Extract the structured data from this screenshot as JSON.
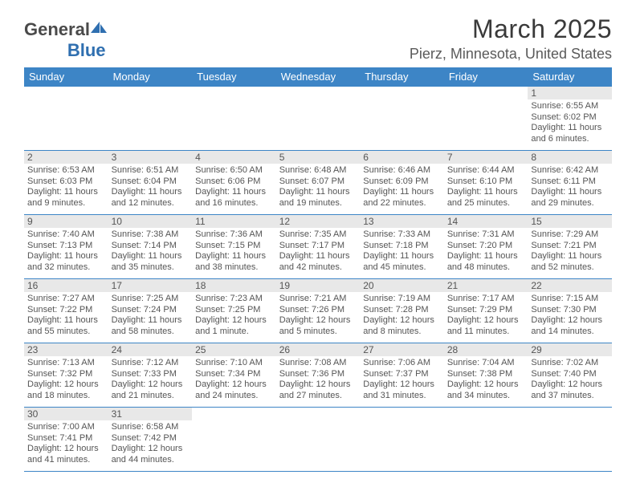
{
  "logo": {
    "prefix": "General",
    "suffix": "Blue"
  },
  "title": {
    "month": "March 2025",
    "location": "Pierz, Minnesota, United States"
  },
  "colors": {
    "header_bg": "#3d85c6",
    "header_fg": "#ffffff",
    "rule": "#3d85c6",
    "daynum_bg": "#e8e8e8",
    "text": "#555555",
    "logo_blue": "#2f6fb0"
  },
  "weekdays": [
    "Sunday",
    "Monday",
    "Tuesday",
    "Wednesday",
    "Thursday",
    "Friday",
    "Saturday"
  ],
  "weeks": [
    [
      null,
      null,
      null,
      null,
      null,
      null,
      {
        "n": "1",
        "sunrise": "6:55 AM",
        "sunset": "6:02 PM",
        "daylight": "11 hours and 6 minutes."
      }
    ],
    [
      {
        "n": "2",
        "sunrise": "6:53 AM",
        "sunset": "6:03 PM",
        "daylight": "11 hours and 9 minutes."
      },
      {
        "n": "3",
        "sunrise": "6:51 AM",
        "sunset": "6:04 PM",
        "daylight": "11 hours and 12 minutes."
      },
      {
        "n": "4",
        "sunrise": "6:50 AM",
        "sunset": "6:06 PM",
        "daylight": "11 hours and 16 minutes."
      },
      {
        "n": "5",
        "sunrise": "6:48 AM",
        "sunset": "6:07 PM",
        "daylight": "11 hours and 19 minutes."
      },
      {
        "n": "6",
        "sunrise": "6:46 AM",
        "sunset": "6:09 PM",
        "daylight": "11 hours and 22 minutes."
      },
      {
        "n": "7",
        "sunrise": "6:44 AM",
        "sunset": "6:10 PM",
        "daylight": "11 hours and 25 minutes."
      },
      {
        "n": "8",
        "sunrise": "6:42 AM",
        "sunset": "6:11 PM",
        "daylight": "11 hours and 29 minutes."
      }
    ],
    [
      {
        "n": "9",
        "sunrise": "7:40 AM",
        "sunset": "7:13 PM",
        "daylight": "11 hours and 32 minutes."
      },
      {
        "n": "10",
        "sunrise": "7:38 AM",
        "sunset": "7:14 PM",
        "daylight": "11 hours and 35 minutes."
      },
      {
        "n": "11",
        "sunrise": "7:36 AM",
        "sunset": "7:15 PM",
        "daylight": "11 hours and 38 minutes."
      },
      {
        "n": "12",
        "sunrise": "7:35 AM",
        "sunset": "7:17 PM",
        "daylight": "11 hours and 42 minutes."
      },
      {
        "n": "13",
        "sunrise": "7:33 AM",
        "sunset": "7:18 PM",
        "daylight": "11 hours and 45 minutes."
      },
      {
        "n": "14",
        "sunrise": "7:31 AM",
        "sunset": "7:20 PM",
        "daylight": "11 hours and 48 minutes."
      },
      {
        "n": "15",
        "sunrise": "7:29 AM",
        "sunset": "7:21 PM",
        "daylight": "11 hours and 52 minutes."
      }
    ],
    [
      {
        "n": "16",
        "sunrise": "7:27 AM",
        "sunset": "7:22 PM",
        "daylight": "11 hours and 55 minutes."
      },
      {
        "n": "17",
        "sunrise": "7:25 AM",
        "sunset": "7:24 PM",
        "daylight": "11 hours and 58 minutes."
      },
      {
        "n": "18",
        "sunrise": "7:23 AM",
        "sunset": "7:25 PM",
        "daylight": "12 hours and 1 minute."
      },
      {
        "n": "19",
        "sunrise": "7:21 AM",
        "sunset": "7:26 PM",
        "daylight": "12 hours and 5 minutes."
      },
      {
        "n": "20",
        "sunrise": "7:19 AM",
        "sunset": "7:28 PM",
        "daylight": "12 hours and 8 minutes."
      },
      {
        "n": "21",
        "sunrise": "7:17 AM",
        "sunset": "7:29 PM",
        "daylight": "12 hours and 11 minutes."
      },
      {
        "n": "22",
        "sunrise": "7:15 AM",
        "sunset": "7:30 PM",
        "daylight": "12 hours and 14 minutes."
      }
    ],
    [
      {
        "n": "23",
        "sunrise": "7:13 AM",
        "sunset": "7:32 PM",
        "daylight": "12 hours and 18 minutes."
      },
      {
        "n": "24",
        "sunrise": "7:12 AM",
        "sunset": "7:33 PM",
        "daylight": "12 hours and 21 minutes."
      },
      {
        "n": "25",
        "sunrise": "7:10 AM",
        "sunset": "7:34 PM",
        "daylight": "12 hours and 24 minutes."
      },
      {
        "n": "26",
        "sunrise": "7:08 AM",
        "sunset": "7:36 PM",
        "daylight": "12 hours and 27 minutes."
      },
      {
        "n": "27",
        "sunrise": "7:06 AM",
        "sunset": "7:37 PM",
        "daylight": "12 hours and 31 minutes."
      },
      {
        "n": "28",
        "sunrise": "7:04 AM",
        "sunset": "7:38 PM",
        "daylight": "12 hours and 34 minutes."
      },
      {
        "n": "29",
        "sunrise": "7:02 AM",
        "sunset": "7:40 PM",
        "daylight": "12 hours and 37 minutes."
      }
    ],
    [
      {
        "n": "30",
        "sunrise": "7:00 AM",
        "sunset": "7:41 PM",
        "daylight": "12 hours and 41 minutes."
      },
      {
        "n": "31",
        "sunrise": "6:58 AM",
        "sunset": "7:42 PM",
        "daylight": "12 hours and 44 minutes."
      },
      null,
      null,
      null,
      null,
      null
    ]
  ],
  "labels": {
    "sunrise": "Sunrise: ",
    "sunset": "Sunset: ",
    "daylight": "Daylight: "
  }
}
